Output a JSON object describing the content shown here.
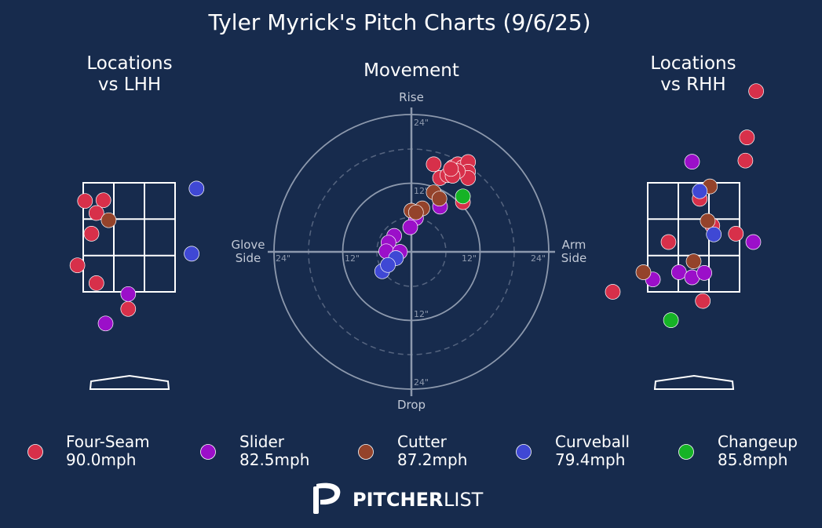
{
  "title": "Tyler Myrick's Pitch Charts (9/6/25)",
  "panels": {
    "lhh_title": [
      "Locations",
      "vs LHH"
    ],
    "movement_title": "Movement",
    "rhh_title": [
      "Locations",
      "vs RHH"
    ]
  },
  "movement_axis": {
    "top": "Rise",
    "bottom": "Drop",
    "left": [
      "Glove",
      "Side"
    ],
    "right": [
      "Arm",
      "Side"
    ],
    "tick_24_top": "24\"",
    "tick_12_top": "12\"",
    "tick_12_bottom": "12\"",
    "tick_24_bottom": "24\"",
    "tick_24_left": "24\"",
    "tick_12_left": "12\"",
    "tick_12_right": "12\"",
    "tick_24_right": "24\""
  },
  "legend": [
    {
      "pitch": "Four-Seam",
      "speed": "90.0mph",
      "color": "#d7304a"
    },
    {
      "pitch": "Slider",
      "speed": "82.5mph",
      "color": "#9b0fc9"
    },
    {
      "pitch": "Cutter",
      "speed": "87.2mph",
      "color": "#94432b"
    },
    {
      "pitch": "Curveball",
      "speed": "79.4mph",
      "color": "#3f48d4"
    },
    {
      "pitch": "Changeup",
      "speed": "85.8mph",
      "color": "#16b326"
    }
  ],
  "logo": {
    "bold": "PITCHER",
    "light": "LIST"
  },
  "chart_data": [
    {
      "type": "scatter",
      "title": "Locations vs LHH",
      "x_unit": "strike zone fraction (-1.5 left edge, +1.5 right edge)",
      "y_unit": "strike zone fraction (1.5 top edge, -1.5 bottom edge)",
      "points": [
        {
          "pitch": "Four-Seam",
          "x": -1.44,
          "y": 1.0
        },
        {
          "pitch": "Four-Seam",
          "x": -0.84,
          "y": 1.02
        },
        {
          "pitch": "Four-Seam",
          "x": -1.07,
          "y": 0.67
        },
        {
          "pitch": "Cutter",
          "x": -0.67,
          "y": 0.47
        },
        {
          "pitch": "Four-Seam",
          "x": -1.23,
          "y": 0.1
        },
        {
          "pitch": "Four-Seam",
          "x": -1.69,
          "y": -0.77
        },
        {
          "pitch": "Four-Seam",
          "x": -1.07,
          "y": -1.26
        },
        {
          "pitch": "Slider",
          "x": -0.03,
          "y": -1.56
        },
        {
          "pitch": "Four-Seam",
          "x": -0.03,
          "y": -1.97
        },
        {
          "pitch": "Slider",
          "x": -0.77,
          "y": -2.37
        },
        {
          "pitch": "Curveball",
          "x": 2.2,
          "y": 1.34
        },
        {
          "pitch": "Curveball",
          "x": 2.04,
          "y": -0.45
        }
      ]
    },
    {
      "type": "scatter",
      "title": "Movement",
      "x_unit": "inches horizontal break (+ arm side)",
      "y_unit": "inches induced vertical break",
      "xlim": [
        -24,
        24
      ],
      "ylim": [
        -24,
        24
      ],
      "points": [
        {
          "pitch": "Four-Seam",
          "x": 3.9,
          "y": 15.3
        },
        {
          "pitch": "Four-Seam",
          "x": 5.0,
          "y": 12.9
        },
        {
          "pitch": "Four-Seam",
          "x": 6.3,
          "y": 13.4
        },
        {
          "pitch": "Four-Seam",
          "x": 7.2,
          "y": 14.8
        },
        {
          "pitch": "Four-Seam",
          "x": 8.1,
          "y": 15.3
        },
        {
          "pitch": "Four-Seam",
          "x": 9.0,
          "y": 14.8
        },
        {
          "pitch": "Four-Seam",
          "x": 9.9,
          "y": 15.7
        },
        {
          "pitch": "Four-Seam",
          "x": 9.9,
          "y": 14.0
        },
        {
          "pitch": "Four-Seam",
          "x": 9.9,
          "y": 12.9
        },
        {
          "pitch": "Four-Seam",
          "x": 8.1,
          "y": 14.1
        },
        {
          "pitch": "Four-Seam",
          "x": 7.2,
          "y": 13.3
        },
        {
          "pitch": "Four-Seam",
          "x": 6.9,
          "y": 14.5
        },
        {
          "pitch": "Four-Seam",
          "x": 9.0,
          "y": 8.7
        },
        {
          "pitch": "Slider",
          "x": 0.8,
          "y": 5.9
        },
        {
          "pitch": "Slider",
          "x": 5.0,
          "y": 7.9
        },
        {
          "pitch": "Slider",
          "x": -0.2,
          "y": 4.3
        },
        {
          "pitch": "Slider",
          "x": -3.0,
          "y": 2.8
        },
        {
          "pitch": "Slider",
          "x": -4.0,
          "y": 1.6
        },
        {
          "pitch": "Slider",
          "x": -4.4,
          "y": 0.1
        },
        {
          "pitch": "Slider",
          "x": -2.0,
          "y": 0.0
        },
        {
          "pitch": "Cutter",
          "x": 0.0,
          "y": 7.2
        },
        {
          "pitch": "Cutter",
          "x": 1.9,
          "y": 7.6
        },
        {
          "pitch": "Cutter",
          "x": 3.9,
          "y": 10.4
        },
        {
          "pitch": "Cutter",
          "x": 4.9,
          "y": 9.3
        },
        {
          "pitch": "Cutter",
          "x": 0.8,
          "y": 6.9
        },
        {
          "pitch": "Curveball",
          "x": -2.7,
          "y": -1.1
        },
        {
          "pitch": "Curveball",
          "x": -5.1,
          "y": -3.4
        },
        {
          "pitch": "Curveball",
          "x": -4.1,
          "y": -2.3
        },
        {
          "pitch": "Changeup",
          "x": 9.0,
          "y": 9.7
        }
      ]
    },
    {
      "type": "scatter",
      "title": "Locations vs RHH",
      "x_unit": "strike zone fraction (-1.5 left edge, +1.5 right edge)",
      "y_unit": "strike zone fraction (1.5 top edge, -1.5 bottom edge)",
      "points": [
        {
          "pitch": "Four-Seam",
          "x": 2.04,
          "y": 4.02
        },
        {
          "pitch": "Four-Seam",
          "x": 1.74,
          "y": 2.75
        },
        {
          "pitch": "Four-Seam",
          "x": 1.69,
          "y": 2.11
        },
        {
          "pitch": "Four-Seam",
          "x": 0.2,
          "y": 1.06
        },
        {
          "pitch": "Four-Seam",
          "x": 0.61,
          "y": 0.32
        },
        {
          "pitch": "Four-Seam",
          "x": 1.38,
          "y": 0.1
        },
        {
          "pitch": "Four-Seam",
          "x": -0.82,
          "y": -0.13
        },
        {
          "pitch": "Four-Seam",
          "x": -2.64,
          "y": -1.5
        },
        {
          "pitch": "Four-Seam",
          "x": 0.3,
          "y": -1.75
        },
        {
          "pitch": "Slider",
          "x": -0.05,
          "y": 2.08
        },
        {
          "pitch": "Slider",
          "x": 1.95,
          "y": -0.13
        },
        {
          "pitch": "Slider",
          "x": -0.48,
          "y": -0.96
        },
        {
          "pitch": "Slider",
          "x": -0.05,
          "y": -1.1
        },
        {
          "pitch": "Slider",
          "x": 0.35,
          "y": -0.98
        },
        {
          "pitch": "Slider",
          "x": -1.33,
          "y": -1.16
        },
        {
          "pitch": "Cutter",
          "x": 0.53,
          "y": 1.4
        },
        {
          "pitch": "Cutter",
          "x": 0.46,
          "y": 0.45
        },
        {
          "pitch": "Cutter",
          "x": 0.0,
          "y": -0.66
        },
        {
          "pitch": "Cutter",
          "x": -1.64,
          "y": -0.96
        },
        {
          "pitch": "Curveball",
          "x": 0.2,
          "y": 1.27
        },
        {
          "pitch": "Curveball",
          "x": 0.66,
          "y": 0.08
        },
        {
          "pitch": "Changeup",
          "x": -0.74,
          "y": -2.28
        }
      ]
    }
  ]
}
